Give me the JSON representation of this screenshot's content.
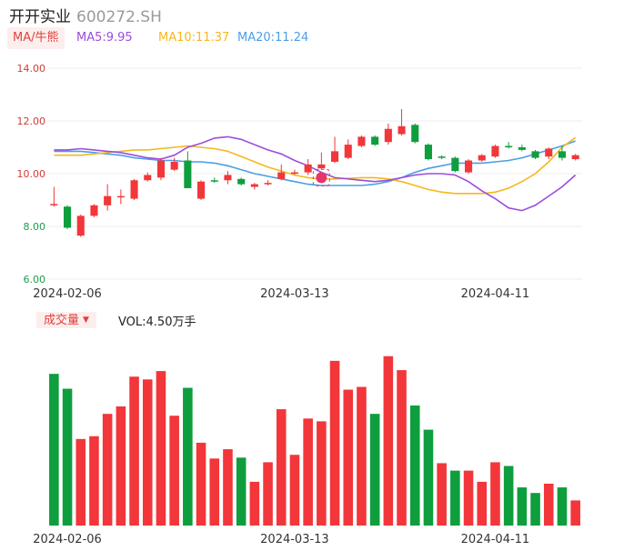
{
  "header": {
    "name": "开开实业",
    "code": "600272.SH"
  },
  "ma_bar": {
    "toggle_label": "MA/牛熊",
    "ma5": "MA5:9.95",
    "ma10": "MA10:11.37",
    "ma20": "MA20:11.24"
  },
  "volume_bar": {
    "toggle_label": "成交量",
    "vol_text": "VOL:4.50万手"
  },
  "colors": {
    "up": "#f2363a",
    "down": "#0e9e3e",
    "ma5": "#9b4ddc",
    "ma10": "#f5b81c",
    "ma20": "#4a9ee6",
    "badge": "#e8336b"
  },
  "icons": {
    "toggle_arrow": "caret-down-icon",
    "marker": "event-badge-icon"
  },
  "chart_data": [
    {
      "type": "candlestick",
      "ylim": [
        6.0,
        14.0
      ],
      "yticks": [
        "14.00",
        "12.00",
        "10.00",
        "8.00",
        "6.00"
      ],
      "xticks": [
        "2024-02-06",
        "2024-03-13",
        "2024-04-11"
      ],
      "xtick_index": [
        1,
        18,
        33
      ],
      "candles": [
        {
          "o": 8.8,
          "c": 8.85,
          "h": 9.5,
          "l": 8.75
        },
        {
          "o": 8.75,
          "c": 7.95,
          "h": 8.8,
          "l": 7.9
        },
        {
          "o": 7.65,
          "c": 8.4,
          "h": 8.45,
          "l": 7.6
        },
        {
          "o": 8.4,
          "c": 8.8,
          "h": 8.85,
          "l": 8.35
        },
        {
          "o": 8.8,
          "c": 9.15,
          "h": 9.6,
          "l": 8.6
        },
        {
          "o": 9.1,
          "c": 9.15,
          "h": 9.4,
          "l": 8.85
        },
        {
          "o": 9.05,
          "c": 9.75,
          "h": 9.8,
          "l": 9.0
        },
        {
          "o": 9.75,
          "c": 9.95,
          "h": 10.05,
          "l": 9.7
        },
        {
          "o": 9.85,
          "c": 10.5,
          "h": 10.6,
          "l": 9.75
        },
        {
          "o": 10.15,
          "c": 10.45,
          "h": 10.6,
          "l": 10.1
        },
        {
          "o": 10.5,
          "c": 9.45,
          "h": 10.85,
          "l": 9.45
        },
        {
          "o": 9.05,
          "c": 9.7,
          "h": 9.75,
          "l": 9.0
        },
        {
          "o": 9.75,
          "c": 9.7,
          "h": 9.85,
          "l": 9.65
        },
        {
          "o": 9.75,
          "c": 9.95,
          "h": 10.1,
          "l": 9.6
        },
        {
          "o": 9.8,
          "c": 9.6,
          "h": 9.85,
          "l": 9.55
        },
        {
          "o": 9.5,
          "c": 9.6,
          "h": 9.65,
          "l": 9.4
        },
        {
          "o": 9.6,
          "c": 9.65,
          "h": 9.75,
          "l": 9.55
        },
        {
          "o": 9.8,
          "c": 10.05,
          "h": 10.35,
          "l": 9.75
        },
        {
          "o": 10.0,
          "c": 10.05,
          "h": 10.15,
          "l": 9.95
        },
        {
          "o": 10.05,
          "c": 10.35,
          "h": 10.55,
          "l": 9.95
        },
        {
          "o": 10.2,
          "c": 10.35,
          "h": 10.8,
          "l": 10.15
        },
        {
          "o": 10.45,
          "c": 10.85,
          "h": 11.4,
          "l": 10.4
        },
        {
          "o": 10.6,
          "c": 11.1,
          "h": 11.3,
          "l": 10.55
        },
        {
          "o": 11.05,
          "c": 11.4,
          "h": 11.45,
          "l": 11.0
        },
        {
          "o": 11.4,
          "c": 11.1,
          "h": 11.45,
          "l": 11.05
        },
        {
          "o": 11.2,
          "c": 11.7,
          "h": 11.9,
          "l": 11.1
        },
        {
          "o": 11.5,
          "c": 11.8,
          "h": 12.45,
          "l": 11.45
        },
        {
          "o": 11.85,
          "c": 11.2,
          "h": 11.9,
          "l": 11.15
        },
        {
          "o": 11.1,
          "c": 10.55,
          "h": 11.15,
          "l": 10.5
        },
        {
          "o": 10.65,
          "c": 10.6,
          "h": 10.7,
          "l": 10.55
        },
        {
          "o": 10.6,
          "c": 10.1,
          "h": 10.65,
          "l": 10.05
        },
        {
          "o": 10.05,
          "c": 10.5,
          "h": 10.55,
          "l": 10.0
        },
        {
          "o": 10.5,
          "c": 10.7,
          "h": 10.75,
          "l": 10.45
        },
        {
          "o": 10.65,
          "c": 11.05,
          "h": 11.1,
          "l": 10.6
        },
        {
          "o": 11.05,
          "c": 11.0,
          "h": 11.2,
          "l": 10.95
        },
        {
          "o": 11.0,
          "c": 10.9,
          "h": 11.1,
          "l": 10.85
        },
        {
          "o": 10.85,
          "c": 10.6,
          "h": 10.9,
          "l": 10.55
        },
        {
          "o": 10.65,
          "c": 10.95,
          "h": 11.0,
          "l": 10.55
        },
        {
          "o": 10.85,
          "c": 10.6,
          "h": 11.05,
          "l": 10.5
        },
        {
          "o": 10.55,
          "c": 10.7,
          "h": 10.75,
          "l": 10.5
        }
      ],
      "ma5": [
        10.9,
        10.9,
        10.95,
        10.9,
        10.85,
        10.8,
        10.7,
        10.6,
        10.55,
        10.7,
        11.0,
        11.15,
        11.35,
        11.4,
        11.3,
        11.1,
        10.9,
        10.75,
        10.5,
        10.3,
        10.05,
        9.85,
        9.8,
        9.75,
        9.7,
        9.75,
        9.85,
        9.95,
        10.0,
        10.0,
        9.95,
        9.7,
        9.35,
        9.05,
        8.7,
        8.6,
        8.8,
        9.15,
        9.5,
        9.95
      ],
      "ma10": [
        10.7,
        10.7,
        10.7,
        10.75,
        10.8,
        10.85,
        10.9,
        10.9,
        10.95,
        11.0,
        11.05,
        11.0,
        10.95,
        10.85,
        10.65,
        10.45,
        10.25,
        10.1,
        9.95,
        9.85,
        9.8,
        9.8,
        9.82,
        9.85,
        9.85,
        9.8,
        9.7,
        9.55,
        9.4,
        9.3,
        9.25,
        9.25,
        9.25,
        9.3,
        9.45,
        9.7,
        10.0,
        10.45,
        11.0,
        11.37
      ],
      "ma20": [
        10.85,
        10.85,
        10.85,
        10.8,
        10.75,
        10.7,
        10.6,
        10.55,
        10.5,
        10.5,
        10.45,
        10.45,
        10.4,
        10.3,
        10.15,
        10.0,
        9.9,
        9.8,
        9.7,
        9.6,
        9.55,
        9.55,
        9.55,
        9.55,
        9.6,
        9.7,
        9.85,
        10.05,
        10.2,
        10.3,
        10.4,
        10.4,
        10.4,
        10.45,
        10.5,
        10.6,
        10.75,
        10.9,
        11.05,
        11.24
      ]
    },
    {
      "type": "bar",
      "title": "成交量",
      "xticks": [
        "2024-02-06",
        "2024-03-13",
        "2024-04-11"
      ],
      "xtick_index": [
        1,
        18,
        33
      ],
      "values": [
        163,
        147,
        93,
        96,
        120,
        128,
        160,
        157,
        166,
        118,
        148,
        89,
        72,
        82,
        73,
        47,
        68,
        125,
        76,
        115,
        112,
        177,
        146,
        149,
        120,
        182,
        167,
        129,
        103,
        67,
        59,
        59,
        47,
        68,
        64,
        41,
        35,
        45,
        41,
        27
      ],
      "colors_up": [
        false,
        false,
        true,
        true,
        true,
        true,
        true,
        true,
        true,
        true,
        false,
        true,
        true,
        true,
        false,
        true,
        true,
        true,
        true,
        true,
        true,
        true,
        true,
        true,
        false,
        true,
        true,
        false,
        false,
        true,
        false,
        true,
        true,
        true,
        false,
        false,
        false,
        true,
        false,
        true
      ]
    }
  ]
}
